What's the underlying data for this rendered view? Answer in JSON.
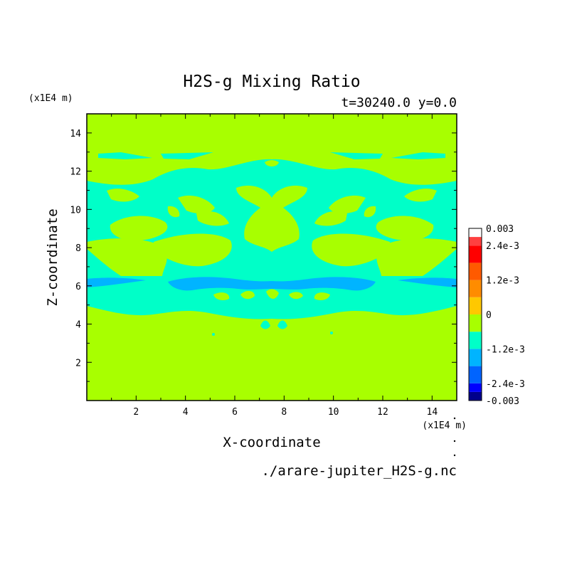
{
  "chart_data": {
    "type": "heatmap",
    "title": "H2S-g Mixing Ratio",
    "subtitle": "t=30240.0 y=0.0",
    "xlabel": "X-coordinate",
    "ylabel": "Z-coordinate",
    "x_unit": "(x1E4 m)",
    "y_unit": "(x1E4 m)",
    "xlim": [
      0,
      15
    ],
    "ylim": [
      0,
      15
    ],
    "xticks": [
      "2",
      "4",
      "6",
      "8",
      "10",
      "12",
      "14"
    ],
    "yticks": [
      "2",
      "4",
      "6",
      "8",
      "10",
      "12",
      "14"
    ],
    "source_file": "./arare-jupiter_H2S-g.nc",
    "colorbar": {
      "labels": [
        "0.003",
        "2.4e-3",
        "1.2e-3",
        "0",
        "-1.2e-3",
        "-2.4e-3",
        "-0.003"
      ],
      "levels": [
        -0.003,
        -0.0027,
        -0.0024,
        -0.0018,
        -0.0012,
        -0.0006,
        0,
        0.0006,
        0.0012,
        0.0018,
        0.0024,
        0.0027,
        0.003
      ],
      "colors": [
        "#00008b",
        "#0000ff",
        "#0064ff",
        "#00b4ff",
        "#00ffc8",
        "#a8ff00",
        "#ffc800",
        "#ff8c00",
        "#ff5a00",
        "#ff0000",
        "#ff4040"
      ]
    },
    "field_colors": {
      "background": "#a8ff00",
      "negative_small": "#00ffc8",
      "negative_medium": "#00b4ff"
    }
  }
}
